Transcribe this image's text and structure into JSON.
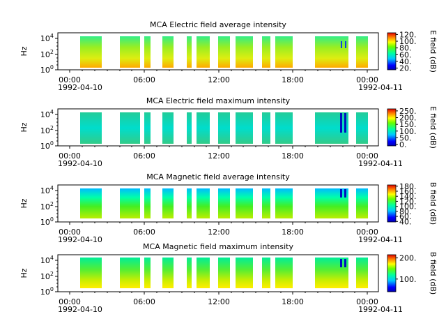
{
  "chart_data": [
    {
      "type": "heatmap",
      "title": "MCA  Electric field average intensity",
      "ylabel": "Hz",
      "y_scale": "log",
      "y_ticks": [
        {
          "exp": "0"
        },
        {
          "exp": "2"
        },
        {
          "exp": "4"
        }
      ],
      "x_ticks": [
        "00:00",
        "06:00",
        "12:00",
        "18:00",
        "00:00"
      ],
      "x_dates": [
        "1992-04-10",
        "1992-04-11"
      ],
      "colorbar": {
        "label": "E field (dB)",
        "range": [
          15,
          125
        ],
        "ticks": [
          "20.",
          "40.",
          "60.",
          "80.",
          "100.",
          "120."
        ],
        "tick_values": [
          20,
          40,
          60,
          80,
          100,
          120
        ]
      }
    },
    {
      "type": "heatmap",
      "title": "MCA  Electric field maximum intensity",
      "ylabel": "Hz",
      "y_scale": "log",
      "y_ticks": [
        {
          "exp": "0"
        },
        {
          "exp": "2"
        },
        {
          "exp": "4"
        }
      ],
      "x_ticks": [
        "00:00",
        "06:00",
        "12:00",
        "18:00",
        "00:00"
      ],
      "x_dates": [
        "1992-04-10",
        "1992-04-11"
      ],
      "colorbar": {
        "label": "E field (dB)",
        "range": [
          -10,
          265
        ],
        "ticks": [
          "0.",
          "50.",
          "100.",
          "150.",
          "200.",
          "250."
        ],
        "tick_values": [
          0,
          50,
          100,
          150,
          200,
          250
        ]
      }
    },
    {
      "type": "heatmap",
      "title": "MCA  Magnetic field average intensity",
      "ylabel": "Hz",
      "y_scale": "log",
      "y_ticks": [
        {
          "exp": "0"
        },
        {
          "exp": "2"
        },
        {
          "exp": "4"
        }
      ],
      "x_ticks": [
        "00:00",
        "06:00",
        "12:00",
        "18:00",
        "00:00"
      ],
      "x_dates": [
        "1992-04-10",
        "1992-04-11"
      ],
      "colorbar": {
        "label": "B field (dB)",
        "range": [
          38,
          185
        ],
        "ticks": [
          "40.",
          "60.",
          "80.",
          "100.",
          "120.",
          "140.",
          "160.",
          "180."
        ],
        "tick_values": [
          40,
          60,
          80,
          100,
          120,
          140,
          160,
          180
        ]
      }
    },
    {
      "type": "heatmap",
      "title": "MCA  Magnetic field maximum intensity",
      "ylabel": "Hz",
      "y_scale": "log",
      "y_ticks": [
        {
          "exp": "0"
        },
        {
          "exp": "2"
        },
        {
          "exp": "4"
        }
      ],
      "x_ticks": [
        "00:00",
        "06:00",
        "12:00",
        "18:00",
        "00:00"
      ],
      "x_dates": [
        "1992-04-10",
        "1992-04-11"
      ],
      "colorbar": {
        "label": "B field (dB)",
        "range": [
          40,
          215
        ],
        "ticks": [
          "100.",
          "200."
        ],
        "tick_values": [
          100,
          200
        ]
      }
    }
  ]
}
